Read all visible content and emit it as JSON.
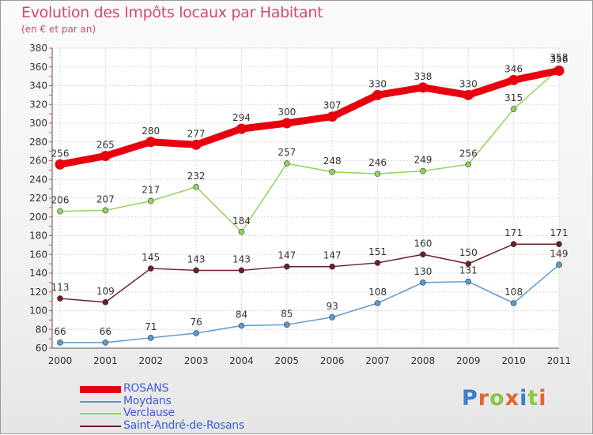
{
  "header": {
    "title": "Evolution des Impôts locaux par Habitant",
    "subtitle": "(en € et par an)"
  },
  "brand": {
    "logo_text": "Proxiti"
  },
  "chart_data": {
    "type": "line",
    "title": "Evolution des Impôts locaux par Habitant",
    "subtitle": "(en € et par an)",
    "xlabel": "",
    "ylabel": "",
    "x": [
      "2000",
      "2001",
      "2002",
      "2003",
      "2004",
      "2005",
      "2006",
      "2007",
      "2008",
      "2009",
      "2010",
      "2011"
    ],
    "ylim": [
      60,
      380
    ],
    "yticks": [
      60,
      80,
      100,
      120,
      140,
      160,
      180,
      200,
      220,
      240,
      260,
      280,
      300,
      320,
      340,
      360,
      380
    ],
    "grid": true,
    "legend_position": "bottom-left",
    "series": [
      {
        "name": "ROSANS",
        "color": "#e8000f",
        "values": [
          256,
          265,
          280,
          277,
          294,
          300,
          307,
          330,
          338,
          330,
          346,
          356
        ],
        "labels": [
          "256",
          "265",
          "280",
          "277",
          "294",
          "300",
          "307",
          "330",
          "338",
          "330",
          "346",
          "356"
        ]
      },
      {
        "name": "Moydans",
        "color": "#5a9ad0",
        "values": [
          66,
          66,
          71,
          76,
          84,
          85,
          93,
          108,
          130,
          131,
          108,
          149
        ],
        "labels": [
          "66",
          "66",
          "71",
          "76",
          "84",
          "85",
          "93",
          "108",
          "130",
          "131",
          "108",
          "149"
        ]
      },
      {
        "name": "Verclause",
        "color": "#8ed45a",
        "values": [
          206,
          207,
          217,
          232,
          184,
          257,
          248,
          246,
          249,
          256,
          315,
          358
        ],
        "labels": [
          "206",
          "207",
          "217",
          "232",
          "184",
          "257",
          "248",
          "246",
          "249",
          "256",
          "315",
          "358"
        ]
      },
      {
        "name": "Saint-André-de-Rosans",
        "color": "#6b1f25",
        "values": [
          113,
          109,
          145,
          143,
          143,
          147,
          147,
          151,
          160,
          150,
          171,
          171
        ],
        "labels": [
          "113",
          "109",
          "145",
          "143",
          "143",
          "147",
          "147",
          "151",
          "160",
          "150",
          "171",
          "171"
        ]
      }
    ]
  }
}
